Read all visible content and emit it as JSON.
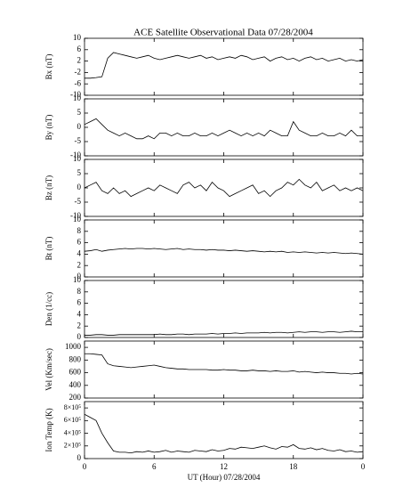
{
  "chart_data": [
    {
      "type": "line",
      "title": "ACE Satellite Observational Data   07/28/2004",
      "ylabel": "Bx (nT)",
      "x": [
        0,
        0.5,
        1,
        1.5,
        2,
        2.5,
        3,
        3.5,
        4,
        4.5,
        5,
        5.5,
        6,
        6.5,
        7,
        7.5,
        8,
        8.5,
        9,
        9.5,
        10,
        10.5,
        11,
        11.5,
        12,
        12.5,
        13,
        13.5,
        14,
        14.5,
        15,
        15.5,
        16,
        16.5,
        17,
        17.5,
        18,
        18.5,
        19,
        19.5,
        20,
        20.5,
        21,
        21.5,
        22,
        22.5,
        23,
        23.5,
        24
      ],
      "values": [
        -4,
        -4,
        -3.8,
        -3.5,
        3,
        5,
        4.5,
        4,
        3.5,
        3,
        3.5,
        4,
        3,
        2.5,
        3,
        3.5,
        4,
        3.5,
        3,
        3.5,
        4,
        3,
        3.5,
        2.5,
        3,
        3.5,
        3,
        4,
        3.5,
        2.5,
        3,
        3.5,
        2,
        3,
        3.5,
        2.5,
        3,
        2,
        3,
        3.5,
        2.5,
        3,
        2,
        2.5,
        3,
        2,
        2.5,
        2,
        2.5
      ],
      "color": "#000000",
      "ylim": [
        -10,
        10
      ],
      "yticks": [
        -10,
        -6,
        -2,
        2,
        6,
        10
      ]
    },
    {
      "type": "line",
      "ylabel": "By (nT)",
      "x": [
        0,
        0.5,
        1,
        1.5,
        2,
        2.5,
        3,
        3.5,
        4,
        4.5,
        5,
        5.5,
        6,
        6.5,
        7,
        7.5,
        8,
        8.5,
        9,
        9.5,
        10,
        10.5,
        11,
        11.5,
        12,
        12.5,
        13,
        13.5,
        14,
        14.5,
        15,
        15.5,
        16,
        16.5,
        17,
        17.5,
        18,
        18.5,
        19,
        19.5,
        20,
        20.5,
        21,
        21.5,
        22,
        22.5,
        23,
        23.5,
        24
      ],
      "values": [
        1,
        2,
        3,
        1,
        -1,
        -2,
        -3,
        -2,
        -3,
        -4,
        -4,
        -3,
        -4,
        -2,
        -2,
        -3,
        -2,
        -3,
        -3,
        -2,
        -3,
        -3,
        -2,
        -3,
        -2,
        -1,
        -2,
        -3,
        -2,
        -3,
        -2,
        -3,
        -1,
        -2,
        -3,
        -3,
        2,
        -1,
        -2,
        -3,
        -3,
        -2,
        -3,
        -3,
        -2,
        -3,
        -1,
        -3,
        -3
      ],
      "color": "#000000",
      "ylim": [
        -10,
        10
      ],
      "yticks": [
        -10,
        -5,
        0,
        5,
        10
      ]
    },
    {
      "type": "line",
      "ylabel": "Bz (nT)",
      "x": [
        0,
        0.5,
        1,
        1.5,
        2,
        2.5,
        3,
        3.5,
        4,
        4.5,
        5,
        5.5,
        6,
        6.5,
        7,
        7.5,
        8,
        8.5,
        9,
        9.5,
        10,
        10.5,
        11,
        11.5,
        12,
        12.5,
        13,
        13.5,
        14,
        14.5,
        15,
        15.5,
        16,
        16.5,
        17,
        17.5,
        18,
        18.5,
        19,
        19.5,
        20,
        20.5,
        21,
        21.5,
        22,
        22.5,
        23,
        23.5,
        24
      ],
      "values": [
        0,
        1,
        2,
        -1,
        -2,
        0,
        -2,
        -1,
        -3,
        -2,
        -1,
        0,
        -1,
        1,
        0,
        -1,
        -2,
        1,
        2,
        0,
        1,
        -1,
        2,
        0,
        -1,
        -3,
        -2,
        -1,
        0,
        1,
        -2,
        -1,
        -3,
        -1,
        0,
        2,
        1,
        3,
        1,
        0,
        2,
        -1,
        0,
        1,
        -1,
        0,
        -1,
        0,
        -1
      ],
      "color": "#000000",
      "ylim": [
        -10,
        10
      ],
      "yticks": [
        -10,
        -5,
        0,
        5,
        10
      ]
    },
    {
      "type": "line",
      "ylabel": "Bt (nT)",
      "x": [
        0,
        0.5,
        1,
        1.5,
        2,
        2.5,
        3,
        3.5,
        4,
        4.5,
        5,
        5.5,
        6,
        6.5,
        7,
        7.5,
        8,
        8.5,
        9,
        9.5,
        10,
        10.5,
        11,
        11.5,
        12,
        12.5,
        13,
        13.5,
        14,
        14.5,
        15,
        15.5,
        16,
        16.5,
        17,
        17.5,
        18,
        18.5,
        19,
        19.5,
        20,
        20.5,
        21,
        21.5,
        22,
        22.5,
        23,
        23.5,
        24
      ],
      "values": [
        4.5,
        4.6,
        4.8,
        4.5,
        4.7,
        4.8,
        4.9,
        5,
        4.9,
        5,
        5,
        4.9,
        5,
        4.9,
        4.8,
        4.9,
        5,
        4.8,
        4.9,
        4.8,
        4.8,
        4.7,
        4.8,
        4.7,
        4.7,
        4.6,
        4.7,
        4.6,
        4.5,
        4.6,
        4.5,
        4.4,
        4.5,
        4.4,
        4.5,
        4.3,
        4.4,
        4.3,
        4.4,
        4.3,
        4.2,
        4.3,
        4.2,
        4.3,
        4.2,
        4.1,
        4.2,
        4.1,
        4
      ],
      "color": "#000000",
      "ylim": [
        0,
        10
      ],
      "yticks": [
        0,
        2,
        4,
        6,
        8,
        10
      ]
    },
    {
      "type": "line",
      "ylabel": "Den (1/cc)",
      "x": [
        0,
        0.5,
        1,
        1.5,
        2,
        2.5,
        3,
        3.5,
        4,
        4.5,
        5,
        5.5,
        6,
        6.5,
        7,
        7.5,
        8,
        8.5,
        9,
        9.5,
        10,
        10.5,
        11,
        11.5,
        12,
        12.5,
        13,
        13.5,
        14,
        14.5,
        15,
        15.5,
        16,
        16.5,
        17,
        17.5,
        18,
        18.5,
        19,
        19.5,
        20,
        20.5,
        21,
        21.5,
        22,
        22.5,
        23,
        23.5,
        24
      ],
      "values": [
        0.4,
        0.4,
        0.5,
        0.5,
        0.4,
        0.4,
        0.5,
        0.5,
        0.5,
        0.5,
        0.5,
        0.5,
        0.5,
        0.6,
        0.5,
        0.5,
        0.6,
        0.6,
        0.5,
        0.6,
        0.6,
        0.6,
        0.7,
        0.6,
        0.7,
        0.7,
        0.8,
        0.7,
        0.8,
        0.8,
        0.8,
        0.9,
        0.8,
        0.9,
        0.9,
        0.8,
        0.9,
        1,
        0.9,
        1,
        1,
        0.9,
        1,
        1,
        0.9,
        1,
        1.1,
        1,
        1
      ],
      "color": "#000000",
      "ylim": [
        0,
        10
      ],
      "yticks": [
        0,
        2,
        4,
        6,
        8,
        10
      ]
    },
    {
      "type": "line",
      "ylabel": "Vel (Km/sec)",
      "x": [
        0,
        0.5,
        1,
        1.5,
        2,
        2.5,
        3,
        3.5,
        4,
        4.5,
        5,
        5.5,
        6,
        6.5,
        7,
        7.5,
        8,
        8.5,
        9,
        9.5,
        10,
        10.5,
        11,
        11.5,
        12,
        12.5,
        13,
        13.5,
        14,
        14.5,
        15,
        15.5,
        16,
        16.5,
        17,
        17.5,
        18,
        18.5,
        19,
        19.5,
        20,
        20.5,
        21,
        21.5,
        22,
        22.5,
        23,
        23.5,
        24
      ],
      "values": [
        900,
        900,
        890,
        880,
        740,
        710,
        700,
        690,
        680,
        690,
        700,
        710,
        720,
        700,
        680,
        670,
        660,
        660,
        650,
        650,
        650,
        650,
        640,
        640,
        650,
        640,
        640,
        630,
        630,
        640,
        630,
        630,
        620,
        630,
        620,
        620,
        630,
        610,
        620,
        610,
        600,
        610,
        600,
        600,
        590,
        590,
        580,
        590,
        580
      ],
      "color": "#000000",
      "ylim": [
        200,
        1100
      ],
      "yticks": [
        200,
        400,
        600,
        800,
        1000
      ]
    },
    {
      "type": "line",
      "ylabel": "Ion Temp (K)",
      "xlabel": "UT (Hour)   07/28/2004",
      "x": [
        0,
        0.5,
        1,
        1.5,
        2,
        2.5,
        3,
        3.5,
        4,
        4.5,
        5,
        5.5,
        6,
        6.5,
        7,
        7.5,
        8,
        8.5,
        9,
        9.5,
        10,
        10.5,
        11,
        11.5,
        12,
        12.5,
        13,
        13.5,
        14,
        14.5,
        15,
        15.5,
        16,
        16.5,
        17,
        17.5,
        18,
        18.5,
        19,
        19.5,
        20,
        20.5,
        21,
        21.5,
        22,
        22.5,
        23,
        23.5,
        24
      ],
      "values": [
        700000,
        650000,
        600000,
        400000,
        250000,
        120000,
        100000,
        100000,
        90000,
        110000,
        100000,
        120000,
        100000,
        110000,
        130000,
        100000,
        120000,
        110000,
        100000,
        130000,
        120000,
        110000,
        140000,
        120000,
        130000,
        160000,
        150000,
        180000,
        170000,
        160000,
        180000,
        200000,
        170000,
        150000,
        190000,
        180000,
        220000,
        160000,
        150000,
        170000,
        140000,
        160000,
        130000,
        120000,
        140000,
        110000,
        120000,
        100000,
        110000
      ],
      "color": "#000000",
      "ylim": [
        0,
        900000
      ],
      "yticks": [
        0,
        {
          "value": 200000,
          "label": "2×10⁵"
        },
        {
          "value": 400000,
          "label": "4×10⁵"
        },
        {
          "value": 600000,
          "label": "6×10⁵"
        },
        {
          "value": 800000,
          "label": "8×10⁵"
        }
      ],
      "xlim": [
        0,
        24
      ],
      "xticks": [
        0,
        6,
        12,
        18,
        {
          "value": 24,
          "label": "0"
        }
      ]
    }
  ]
}
